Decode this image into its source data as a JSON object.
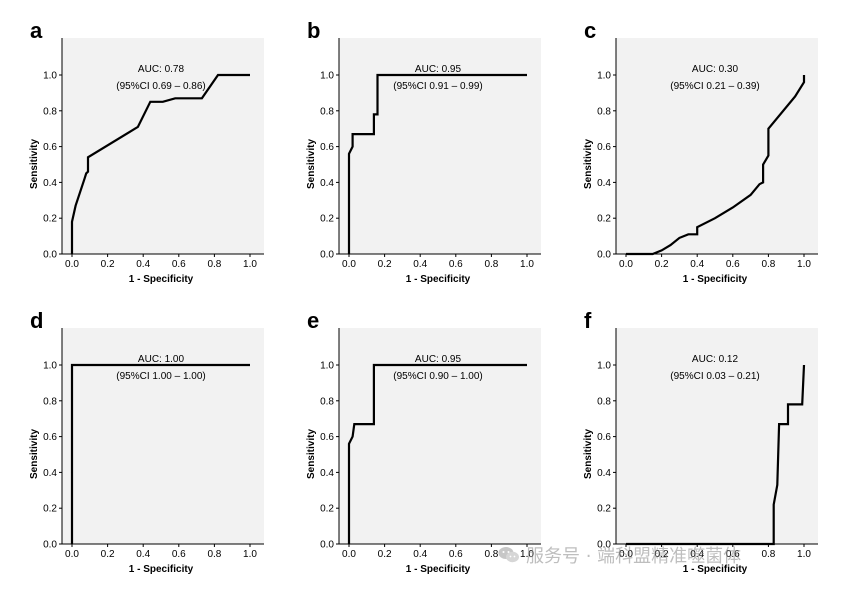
{
  "watermark": {
    "text": "服务号 · 端科盟精准噬菌体",
    "icon": "wechat-icon"
  },
  "chart_data": [
    {
      "type": "line",
      "panel": "a",
      "title": "",
      "xlabel": "1 - Specificity",
      "ylabel": "Sensitivity",
      "xlim": [
        0,
        1
      ],
      "ylim": [
        0,
        1
      ],
      "xticks": [
        "0.0",
        "0.2",
        "0.4",
        "0.6",
        "0.8",
        "1.0"
      ],
      "yticks": [
        "0.0",
        "0.2",
        "0.4",
        "0.6",
        "0.8",
        "1.0"
      ],
      "auc_label": "AUC: 0.78",
      "ci_label": "(95%CI 0.69 – 0.86)",
      "series": [
        {
          "name": "ROC",
          "x": [
            0,
            0,
            0.02,
            0.07,
            0.08,
            0.09,
            0.09,
            0.37,
            0.44,
            0.51,
            0.58,
            0.73,
            0.82,
            1.0
          ],
          "y": [
            0,
            0.18,
            0.27,
            0.42,
            0.45,
            0.46,
            0.54,
            0.71,
            0.85,
            0.85,
            0.87,
            0.87,
            1.0,
            1.0
          ]
        }
      ]
    },
    {
      "type": "line",
      "panel": "b",
      "title": "",
      "xlabel": "1 - Specificity",
      "ylabel": "Sensitivity",
      "xlim": [
        0,
        1
      ],
      "ylim": [
        0,
        1
      ],
      "xticks": [
        "0.0",
        "0.2",
        "0.4",
        "0.6",
        "0.8",
        "1.0"
      ],
      "yticks": [
        "0.0",
        "0.2",
        "0.4",
        "0.6",
        "0.8",
        "1.0"
      ],
      "auc_label": "AUC: 0.95",
      "ci_label": "(95%CI 0.91 – 0.99)",
      "series": [
        {
          "name": "ROC",
          "x": [
            0,
            0,
            0.02,
            0.02,
            0.14,
            0.14,
            0.16,
            0.16,
            1.0
          ],
          "y": [
            0,
            0.56,
            0.6,
            0.67,
            0.67,
            0.78,
            0.78,
            1.0,
            1.0
          ]
        }
      ]
    },
    {
      "type": "line",
      "panel": "c",
      "title": "",
      "xlabel": "1 - Specificity",
      "ylabel": "Sensitivity",
      "xlim": [
        0,
        1
      ],
      "ylim": [
        0,
        1
      ],
      "xticks": [
        "0.0",
        "0.2",
        "0.4",
        "0.6",
        "0.8",
        "1.0"
      ],
      "yticks": [
        "0.0",
        "0.2",
        "0.4",
        "0.6",
        "0.8",
        "1.0"
      ],
      "auc_label": "AUC: 0.30",
      "ci_label": "(95%CI 0.21 – 0.39)",
      "series": [
        {
          "name": "ROC",
          "x": [
            0,
            0.15,
            0.2,
            0.25,
            0.3,
            0.35,
            0.4,
            0.4,
            0.5,
            0.6,
            0.7,
            0.75,
            0.77,
            0.77,
            0.8,
            0.8,
            0.95,
            1.0,
            1.0
          ],
          "y": [
            0,
            0,
            0.02,
            0.05,
            0.09,
            0.11,
            0.11,
            0.15,
            0.2,
            0.26,
            0.33,
            0.39,
            0.4,
            0.5,
            0.55,
            0.7,
            0.88,
            0.96,
            1.0
          ]
        }
      ]
    },
    {
      "type": "line",
      "panel": "d",
      "title": "",
      "xlabel": "1 - Specificity",
      "ylabel": "Sensitivity",
      "xlim": [
        0,
        1
      ],
      "ylim": [
        0,
        1
      ],
      "xticks": [
        "0.0",
        "0.2",
        "0.4",
        "0.6",
        "0.8",
        "1.0"
      ],
      "yticks": [
        "0.0",
        "0.2",
        "0.4",
        "0.6",
        "0.8",
        "1.0"
      ],
      "auc_label": "AUC: 1.00",
      "ci_label": "(95%CI 1.00 – 1.00)",
      "series": [
        {
          "name": "ROC",
          "x": [
            0,
            0,
            1.0
          ],
          "y": [
            0,
            1.0,
            1.0
          ]
        }
      ]
    },
    {
      "type": "line",
      "panel": "e",
      "title": "",
      "xlabel": "1 - Specificity",
      "ylabel": "Sensitivity",
      "xlim": [
        0,
        1
      ],
      "ylim": [
        0,
        1
      ],
      "xticks": [
        "0.0",
        "0.2",
        "0.4",
        "0.6",
        "0.8",
        "1.0"
      ],
      "yticks": [
        "0.0",
        "0.2",
        "0.4",
        "0.6",
        "0.8",
        "1.0"
      ],
      "auc_label": "AUC: 0.95",
      "ci_label": "(95%CI 0.90 – 1.00)",
      "series": [
        {
          "name": "ROC",
          "x": [
            0,
            0,
            0.02,
            0.03,
            0.14,
            0.14,
            1.0
          ],
          "y": [
            0,
            0.56,
            0.6,
            0.67,
            0.67,
            1.0,
            1.0
          ]
        }
      ]
    },
    {
      "type": "line",
      "panel": "f",
      "title": "",
      "xlabel": "1 - Specificity",
      "ylabel": "Sensitivity",
      "xlim": [
        0,
        1
      ],
      "ylim": [
        0,
        1
      ],
      "xticks": [
        "0.0",
        "0.2",
        "0.4",
        "0.6",
        "0.8",
        "1.0"
      ],
      "yticks": [
        "0.0",
        "0.2",
        "0.4",
        "0.6",
        "0.8",
        "1.0"
      ],
      "auc_label": "AUC: 0.12",
      "ci_label": "(95%CI 0.03 – 0.21)",
      "series": [
        {
          "name": "ROC",
          "x": [
            0,
            0.83,
            0.83,
            0.85,
            0.86,
            0.91,
            0.91,
            0.99,
            1.0
          ],
          "y": [
            0,
            0,
            0.22,
            0.33,
            0.67,
            0.67,
            0.78,
            0.78,
            1.0
          ]
        }
      ]
    }
  ]
}
